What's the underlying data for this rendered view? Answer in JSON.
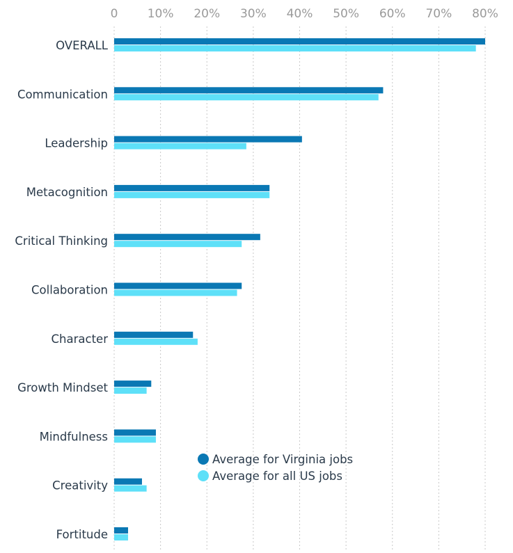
{
  "chart_data": {
    "type": "bar",
    "orientation": "horizontal",
    "categories": [
      "OVERALL",
      "Communication",
      "Leadership",
      "Metacognition",
      "Critical Thinking",
      "Collaboration",
      "Character",
      "Growth Mindset",
      "Mindfulness",
      "Creativity",
      "Fortitude"
    ],
    "series": [
      {
        "name": "Average for Virginia jobs",
        "color": "#0a78b4",
        "values": [
          80,
          58,
          40.5,
          33.5,
          31.5,
          27.5,
          17,
          8,
          9,
          6,
          3
        ]
      },
      {
        "name": "Average for all US jobs",
        "color": "#5ee0f8",
        "values": [
          78,
          57,
          28.5,
          33.5,
          27.5,
          26.5,
          18,
          7,
          9,
          7,
          3
        ]
      }
    ],
    "xlim": [
      0,
      80
    ],
    "xticks": [
      0,
      10,
      20,
      30,
      40,
      50,
      60,
      70,
      80
    ],
    "xtick_labels": [
      "0",
      "10%",
      "20%",
      "30%",
      "40%",
      "50%",
      "60%",
      "70%",
      "80%"
    ],
    "axis_position": "top",
    "grid": "vertical dashed",
    "legend_position": "bottom-center"
  }
}
